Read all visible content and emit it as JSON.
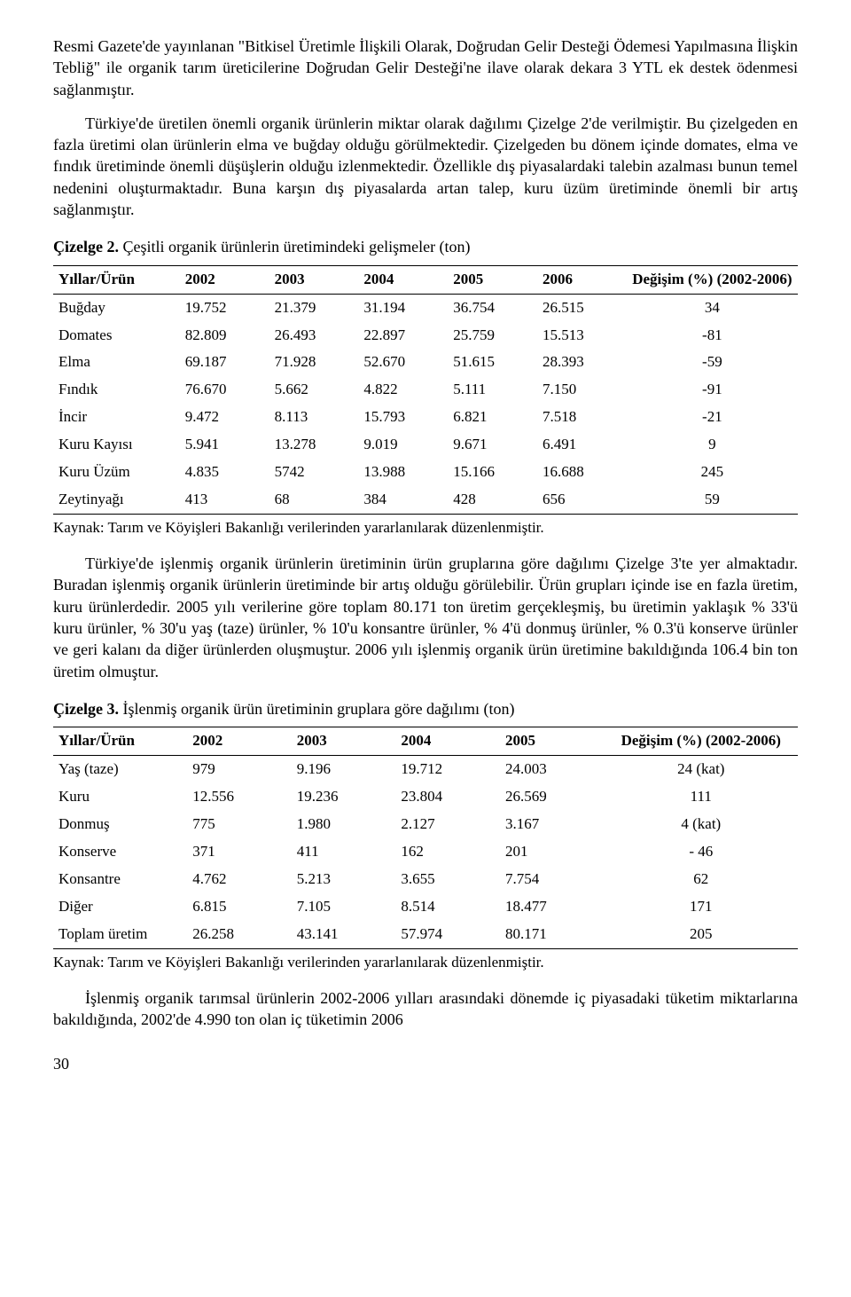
{
  "para1": "Resmi Gazete'de yayınlanan \"Bitkisel Üretimle İlişkili Olarak, Doğrudan Gelir Desteği Ödemesi Yapılmasına İlişkin Tebliğ\" ile organik tarım üreticilerine Doğrudan Gelir Desteği'ne ilave olarak dekara 3 YTL ek destek ödenmesi sağlanmıştır.",
  "para2": "Türkiye'de üretilen önemli organik ürünlerin miktar olarak dağılımı Çizelge 2'de verilmiştir. Bu çizelgeden en fazla üretimi olan ürünlerin elma ve buğday olduğu görülmektedir. Çizelgeden bu dönem içinde domates, elma ve fındık üretiminde önemli düşüşlerin olduğu izlenmektedir. Özellikle dış piyasalardaki talebin azalması bunun temel nedenini oluşturmaktadır. Buna karşın dış piyasalarda artan talep, kuru üzüm üretiminde önemli bir artış sağlanmıştır.",
  "table2_title_bold": "Çizelge 2.",
  "table2_title_rest": " Çeşitli organik ürünlerin üretimindeki gelişmeler (ton)",
  "table2": {
    "headers": [
      "Yıllar/Ürün",
      "2002",
      "2003",
      "2004",
      "2005",
      "2006",
      "Değişim (%) (2002-2006)"
    ],
    "rows": [
      [
        "Buğday",
        "19.752",
        "21.379",
        "31.194",
        "36.754",
        "26.515",
        "34"
      ],
      [
        "Domates",
        "82.809",
        "26.493",
        "22.897",
        "25.759",
        "15.513",
        "-81"
      ],
      [
        "Elma",
        "69.187",
        "71.928",
        "52.670",
        "51.615",
        "28.393",
        "-59"
      ],
      [
        "Fındık",
        "76.670",
        "5.662",
        "4.822",
        "5.111",
        "7.150",
        "-91"
      ],
      [
        "İncir",
        "9.472",
        "8.113",
        "15.793",
        "6.821",
        "7.518",
        "-21"
      ],
      [
        "Kuru Kayısı",
        "5.941",
        "13.278",
        "9.019",
        "9.671",
        "6.491",
        "9"
      ],
      [
        "Kuru Üzüm",
        "4.835",
        "5742",
        "13.988",
        "15.166",
        "16.688",
        "245"
      ],
      [
        "Zeytinyağı",
        "413",
        "68",
        "384",
        "428",
        "656",
        "59"
      ]
    ]
  },
  "source1": "Kaynak: Tarım ve Köyişleri Bakanlığı verilerinden yararlanılarak düzenlenmiştir.",
  "para3": "Türkiye'de işlenmiş organik ürünlerin üretiminin ürün gruplarına göre dağılımı Çizelge 3'te yer almaktadır. Buradan işlenmiş organik ürünlerin üretiminde bir artış olduğu görülebilir. Ürün grupları içinde ise en fazla üretim, kuru ürünlerdedir. 2005 yılı verilerine göre toplam 80.171 ton üretim gerçekleşmiş, bu üretimin yaklaşık % 33'ü kuru ürünler, % 30'u yaş (taze) ürünler, % 10'u konsantre ürünler, % 4'ü donmuş ürünler, % 0.3'ü konserve ürünler ve geri kalanı da diğer ürünlerden oluşmuştur. 2006 yılı işlenmiş organik ürün üretimine bakıldığında 106.4 bin ton üretim olmuştur.",
  "table3_title_bold": "Çizelge 3.",
  "table3_title_rest": " İşlenmiş organik ürün üretiminin gruplara göre dağılımı (ton)",
  "table3": {
    "headers": [
      "Yıllar/Ürün",
      "2002",
      "2003",
      "2004",
      "2005",
      "Değişim (%) (2002-2006)"
    ],
    "rows": [
      [
        "Yaş (taze)",
        "979",
        "9.196",
        "19.712",
        "24.003",
        "24 (kat)"
      ],
      [
        "Kuru",
        "12.556",
        "19.236",
        "23.804",
        "26.569",
        "111"
      ],
      [
        "Donmuş",
        "775",
        "1.980",
        "2.127",
        "3.167",
        "4 (kat)"
      ],
      [
        "Konserve",
        "371",
        "411",
        "162",
        "201",
        "- 46"
      ],
      [
        "Konsantre",
        "4.762",
        "5.213",
        "3.655",
        "7.754",
        "62"
      ],
      [
        "Diğer",
        "6.815",
        "7.105",
        "8.514",
        "18.477",
        "171"
      ],
      [
        "Toplam üretim",
        "26.258",
        "43.141",
        "57.974",
        "80.171",
        "205"
      ]
    ]
  },
  "source2": "Kaynak: Tarım ve Köyişleri Bakanlığı verilerinden yararlanılarak düzenlenmiştir.",
  "para4": "İşlenmiş organik tarımsal ürünlerin 2002-2006 yılları arasındaki dönemde iç piyasadaki tüketim miktarlarına bakıldığında, 2002'de 4.990 ton olan iç tüketimin 2006",
  "page_number": "30"
}
